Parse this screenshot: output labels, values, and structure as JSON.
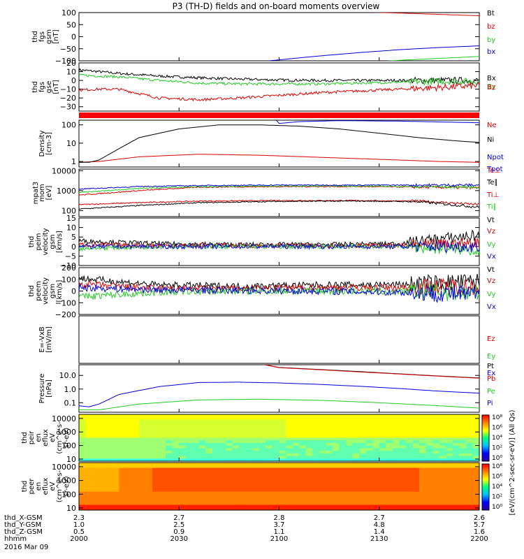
{
  "title": "P3 (TH-D) fields and on-board moments overview",
  "colors": {
    "black": "#000000",
    "red": "#dd0000",
    "green": "#22cc22",
    "blue": "#0000dd"
  },
  "chart_data": [
    {
      "type": "line",
      "name": "thd_fgs_gsm",
      "ylabel": [
        "thd",
        "fgs",
        "gsm",
        "[nT]"
      ],
      "ylim": [
        -100,
        100
      ],
      "yscale": "linear",
      "ticks": [
        "100",
        "50",
        "0",
        "−50",
        "−100"
      ],
      "tickvals": [
        100,
        50,
        0,
        -50,
        -100
      ],
      "series": [
        {
          "name": "Bt",
          "color": "#000000",
          "t": [
            2000,
            2200
          ],
          "v": [
            130,
            130
          ]
        },
        {
          "name": "bz",
          "color": "#dd0000",
          "t": [
            2000,
            2040,
            2080,
            2120,
            2160,
            2200
          ],
          "v": [
            135,
            128,
            118,
            108,
            98,
            87
          ]
        },
        {
          "name": "by",
          "color": "#22cc22",
          "t": [
            2000,
            2120,
            2140,
            2160,
            2180,
            2200
          ],
          "v": [
            -130,
            -130,
            -110,
            -98,
            -90,
            -82
          ]
        },
        {
          "name": "bx",
          "color": "#0000dd",
          "t": [
            2000,
            2080,
            2095,
            2120,
            2140,
            2160,
            2180,
            2200
          ],
          "v": [
            -130,
            -130,
            -100,
            -80,
            -66,
            -54,
            -45,
            -38
          ]
        }
      ]
    },
    {
      "type": "line",
      "name": "thd_fgs_gse",
      "ylabel": [
        "thd",
        "fgs",
        "gse",
        "[nT]"
      ],
      "ylim": [
        -35,
        20
      ],
      "yscale": "linear",
      "ticks": [
        "20",
        "10",
        "0",
        "−10",
        "−20",
        "−30"
      ],
      "tickvals": [
        20,
        10,
        0,
        -10,
        -20,
        -30
      ],
      "series": [
        {
          "name": "Bx",
          "color": "#000000",
          "t": [
            2000,
            2020,
            2040,
            2060,
            2080,
            2100,
            2120,
            2140,
            2160,
            2180,
            2200
          ],
          "v": [
            12,
            8,
            5,
            3,
            1.5,
            0.5,
            0,
            0,
            0,
            0,
            0
          ]
        },
        {
          "name": "By",
          "color": "#22cc22",
          "t": [
            2000,
            2020,
            2040,
            2060,
            2080,
            2100,
            2120,
            2140,
            2160,
            2180,
            2200
          ],
          "v": [
            6,
            4,
            0,
            -3,
            -4,
            -4,
            -4,
            -3,
            -2,
            -1,
            -1
          ]
        },
        {
          "name": "Bz",
          "color": "#dd0000",
          "t": [
            2000,
            2010,
            2020,
            2040,
            2060,
            2080,
            2100,
            2120,
            2140,
            2160,
            2180,
            2200
          ],
          "v": [
            -11,
            -10,
            -10,
            -20,
            -22,
            -20,
            -17,
            -14,
            -12,
            -10,
            -8,
            -6
          ]
        }
      ]
    },
    {
      "type": "line",
      "name": "density",
      "ylabel": [
        "Density",
        "[cm-3]"
      ],
      "ylim": [
        0.5,
        180
      ],
      "yscale": "log",
      "ticks": [
        "100",
        "10",
        "1"
      ],
      "tickvals": [
        100,
        10,
        1
      ],
      "series": [
        {
          "name": "Ne",
          "color": "#dd0000",
          "t": [
            2000,
            2010,
            2030,
            2060,
            2090,
            2120,
            2160,
            2180,
            2200
          ],
          "v": [
            0.9,
            1.0,
            1.8,
            2.5,
            2.2,
            1.7,
            1.2,
            1.0,
            0.9
          ]
        },
        {
          "name": "Ni",
          "color": "#000000",
          "t": [
            2000,
            2005,
            2010,
            2020,
            2030,
            2050,
            2070,
            2090,
            2110,
            2130,
            2150,
            2170,
            2190,
            2200
          ],
          "v": [
            0.9,
            0.9,
            1.2,
            5,
            20,
            60,
            100,
            100,
            85,
            60,
            35,
            20,
            13,
            11
          ]
        },
        {
          "name": "Npot",
          "color": "#0000dd",
          "t": [
            2000,
            2095,
            2100,
            2110,
            2130,
            2160,
            2200
          ],
          "v": [
            500,
            500,
            120,
            150,
            170,
            160,
            130
          ]
        }
      ]
    },
    {
      "type": "line",
      "name": "temperature",
      "ylabel": [
        "mom",
        "[eV]"
      ],
      "ytitle": "mpat3",
      "ylim": [
        50,
        12000
      ],
      "yscale": "log",
      "ticks": [
        "10000",
        "1000",
        "100"
      ],
      "tickvals": [
        10000,
        1000,
        100
      ],
      "series": [
        {
          "name": "Te⊥",
          "color": "#dd0000",
          "t": [
            2000,
            2030,
            2060,
            2100,
            2140,
            2170,
            2200
          ],
          "v": [
            200,
            250,
            300,
            320,
            320,
            300,
            200
          ]
        },
        {
          "name": "Te∥",
          "color": "#000000",
          "t": [
            2000,
            2030,
            2060,
            2100,
            2140,
            2170,
            2200
          ],
          "v": [
            120,
            180,
            250,
            290,
            300,
            280,
            150
          ]
        },
        {
          "name": "Ti⊥",
          "color": "#dd0000",
          "t": [
            2000,
            2030,
            2060,
            2100,
            2140,
            2170,
            2200
          ],
          "v": [
            600,
            1000,
            1500,
            1600,
            1600,
            1500,
            1400
          ]
        },
        {
          "name": "Ti∥",
          "color": "#22cc22",
          "t": [
            2000,
            2030,
            2060,
            2100,
            2140,
            2170,
            2200
          ],
          "v": [
            800,
            1300,
            1600,
            1700,
            1700,
            1600,
            1500
          ]
        },
        {
          "name": "Tpot",
          "color": "#0000dd",
          "t": [
            2000,
            2030,
            2060,
            2100,
            2140,
            2170,
            2200
          ],
          "v": [
            1200,
            1600,
            1800,
            1900,
            1900,
            1900,
            1900
          ]
        }
      ]
    },
    {
      "type": "line",
      "name": "thd_peim_velocity_gsm",
      "ylabel": [
        "thd",
        "peim",
        "velocity",
        "gsm",
        "[km/s]"
      ],
      "ylim": [
        -10,
        15
      ],
      "yscale": "linear",
      "ticks": [
        "15",
        "10",
        "5",
        "0",
        "−5",
        "−10"
      ],
      "tickvals": [
        15,
        10,
        5,
        0,
        -5,
        -10
      ],
      "series": [
        {
          "name": "Vt",
          "color": "#000000",
          "t": [
            2000,
            2040,
            2080,
            2120,
            2160,
            2180,
            2200
          ],
          "v": [
            3,
            1.5,
            1,
            1,
            1.5,
            4,
            6
          ]
        },
        {
          "name": "Vz",
          "color": "#dd0000",
          "t": [
            2000,
            2040,
            2080,
            2120,
            2160,
            2180,
            2200
          ],
          "v": [
            1,
            0.5,
            0.5,
            0.5,
            0.5,
            1,
            2
          ]
        },
        {
          "name": "Vy",
          "color": "#22cc22",
          "t": [
            2000,
            2040,
            2080,
            2120,
            2160,
            2180,
            2200
          ],
          "v": [
            -1,
            0,
            0,
            0,
            0,
            -1,
            -2
          ]
        },
        {
          "name": "Vx",
          "color": "#0000dd",
          "t": [
            2000,
            2040,
            2080,
            2120,
            2160,
            2180,
            2200
          ],
          "v": [
            0,
            0,
            0,
            0,
            0,
            0,
            0
          ]
        }
      ]
    },
    {
      "type": "line",
      "name": "thd_peem_velocity_gsm",
      "ylabel": [
        "thd",
        "peem",
        "velocity",
        "gsm",
        "[km/s]"
      ],
      "ylim": [
        -200,
        200
      ],
      "yscale": "linear",
      "ticks": [
        "200",
        "100",
        "0",
        "−100",
        "−200"
      ],
      "tickvals": [
        200,
        100,
        0,
        -100,
        -200
      ],
      "series": [
        {
          "name": "Vt",
          "color": "#000000",
          "t": [
            2000,
            2040,
            2080,
            2120,
            2160,
            2200
          ],
          "v": [
            110,
            50,
            40,
            50,
            55,
            80
          ]
        },
        {
          "name": "Vz",
          "color": "#dd0000",
          "t": [
            2000,
            2040,
            2080,
            2120,
            2160,
            2200
          ],
          "v": [
            60,
            20,
            20,
            30,
            30,
            40
          ]
        },
        {
          "name": "Vy",
          "color": "#22cc22",
          "t": [
            2000,
            2040,
            2080,
            2120,
            2160,
            2200
          ],
          "v": [
            -50,
            -10,
            0,
            0,
            -5,
            -20
          ]
        },
        {
          "name": "Vx",
          "color": "#0000dd",
          "t": [
            2000,
            2040,
            2080,
            2120,
            2160,
            2200
          ],
          "v": [
            30,
            10,
            5,
            0,
            -10,
            -30
          ]
        }
      ]
    },
    {
      "type": "line",
      "name": "E=-VxB",
      "ylabel": [
        "E=-VxB",
        "[mV/m]"
      ],
      "ylim": [
        -1,
        1
      ],
      "yscale": "linear",
      "ticks": [],
      "tickvals": [],
      "series": [
        {
          "name": "Ez",
          "color": "#dd0000",
          "t": [],
          "v": []
        },
        {
          "name": "Ey",
          "color": "#22cc22",
          "t": [],
          "v": []
        },
        {
          "name": "Ex",
          "color": "#0000dd",
          "t": [],
          "v": []
        }
      ]
    },
    {
      "type": "line",
      "name": "pressure",
      "ylabel": [
        "Pressure",
        "[nPa]"
      ],
      "ylim": [
        0.02,
        60
      ],
      "yscale": "log",
      "ticks": [
        "10.0",
        "1.0",
        "0.1"
      ],
      "tickvals": [
        10,
        1,
        0.1
      ],
      "series": [
        {
          "name": "Pt",
          "color": "#000000",
          "t": [
            2000,
            2085,
            2100,
            2120,
            2140,
            2160,
            2180,
            2200
          ],
          "v": [
            100,
            100,
            38,
            27,
            19,
            13,
            9,
            6.5
          ]
        },
        {
          "name": "Pb",
          "color": "#dd0000",
          "t": [
            2000,
            2085,
            2100,
            2120,
            2140,
            2160,
            2180,
            2200
          ],
          "v": [
            100,
            100,
            37,
            26,
            18,
            12.5,
            8.7,
            6.2
          ]
        },
        {
          "name": "Pe",
          "color": "#22cc22",
          "t": [
            2000,
            2010,
            2030,
            2060,
            2090,
            2120,
            2150,
            2180,
            2200
          ],
          "v": [
            0.03,
            0.03,
            0.08,
            0.16,
            0.18,
            0.15,
            0.1,
            0.06,
            0.04
          ]
        },
        {
          "name": "Pi",
          "color": "#0000dd",
          "t": [
            2000,
            2005,
            2010,
            2020,
            2040,
            2060,
            2080,
            2100,
            2120,
            2140,
            2160,
            2180,
            2200
          ],
          "v": [
            0.06,
            0.05,
            0.08,
            0.4,
            1.5,
            3,
            3.2,
            2.8,
            2.2,
            1.6,
            1.1,
            0.7,
            0.5
          ]
        }
      ]
    },
    {
      "type": "heatmap",
      "name": "thd_peir_en_eflux",
      "ylabel": [
        "thd",
        "peir",
        "en",
        "eflux",
        "eV",
        "(cm^2-s-",
        "sr-eV)"
      ],
      "ylim": [
        7,
        20000
      ],
      "yscale": "log",
      "ticks": [
        "10000",
        "1000",
        "100",
        "10"
      ],
      "tickvals": [
        10000,
        1000,
        100,
        10
      ],
      "zlim": [
        1,
        8
      ]
    },
    {
      "type": "heatmap",
      "name": "thd_peer_en_eflux",
      "ylabel": [
        "thd",
        "peer",
        "en",
        "eflux",
        "eV",
        "(cm^2-s-",
        "sr-eV)"
      ],
      "ylim": [
        7,
        20000
      ],
      "yscale": "log",
      "ticks": [
        "10000",
        "1000",
        "100",
        "10"
      ],
      "tickvals": [
        10000,
        1000,
        100,
        10
      ],
      "zlim": [
        0,
        8
      ]
    }
  ],
  "colorbar": {
    "label": "[eV/(cm^2-sec-sr-eV)] (All Qs)",
    "labels_top": [
      "10⁸",
      "10⁶",
      "10⁴",
      "10²",
      "10⁰"
    ],
    "labels_bottom": [
      "10⁸",
      "10⁶",
      "10⁴",
      "10²",
      "10⁰"
    ]
  },
  "xaxis": {
    "ticks_hhmm": [
      "2000",
      "2030",
      "2100",
      "2130",
      "2200"
    ],
    "rows": [
      {
        "label": "thd_X-GSM",
        "values": [
          "2.3",
          "2.7",
          "2.8",
          "2.7",
          "2.6"
        ]
      },
      {
        "label": "thd_Y-GSM",
        "values": [
          "1.0",
          "2.5",
          "3.7",
          "4.8",
          "5.7"
        ]
      },
      {
        "label": "thd_Z-GSM",
        "values": [
          "0.5",
          "0.9",
          "1.1",
          "1.4",
          "1.6"
        ]
      },
      {
        "label": "hhmm",
        "values": [
          "2000",
          "2030",
          "2100",
          "2130",
          "2200"
        ]
      }
    ],
    "date": "2016 Mar 09"
  }
}
